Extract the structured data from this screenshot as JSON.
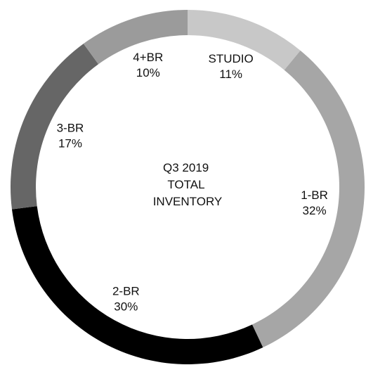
{
  "chart_data": {
    "type": "pie",
    "variant": "donut",
    "center_label_lines": [
      "Q3 2019",
      "TOTAL",
      "INVENTORY"
    ],
    "slices": [
      {
        "label": "STUDIO",
        "value": 11,
        "value_label": "11%",
        "color": "#c8c8c8"
      },
      {
        "label": "1-BR",
        "value": 32,
        "value_label": "32%",
        "color": "#a6a6a6"
      },
      {
        "label": "2-BR",
        "value": 30,
        "value_label": "30%",
        "color": "#000000"
      },
      {
        "label": "3-BR",
        "value": 17,
        "value_label": "17%",
        "color": "#666666"
      },
      {
        "label": "4+BR",
        "value": 10,
        "value_label": "10%",
        "color": "#9b9b9b"
      }
    ]
  }
}
